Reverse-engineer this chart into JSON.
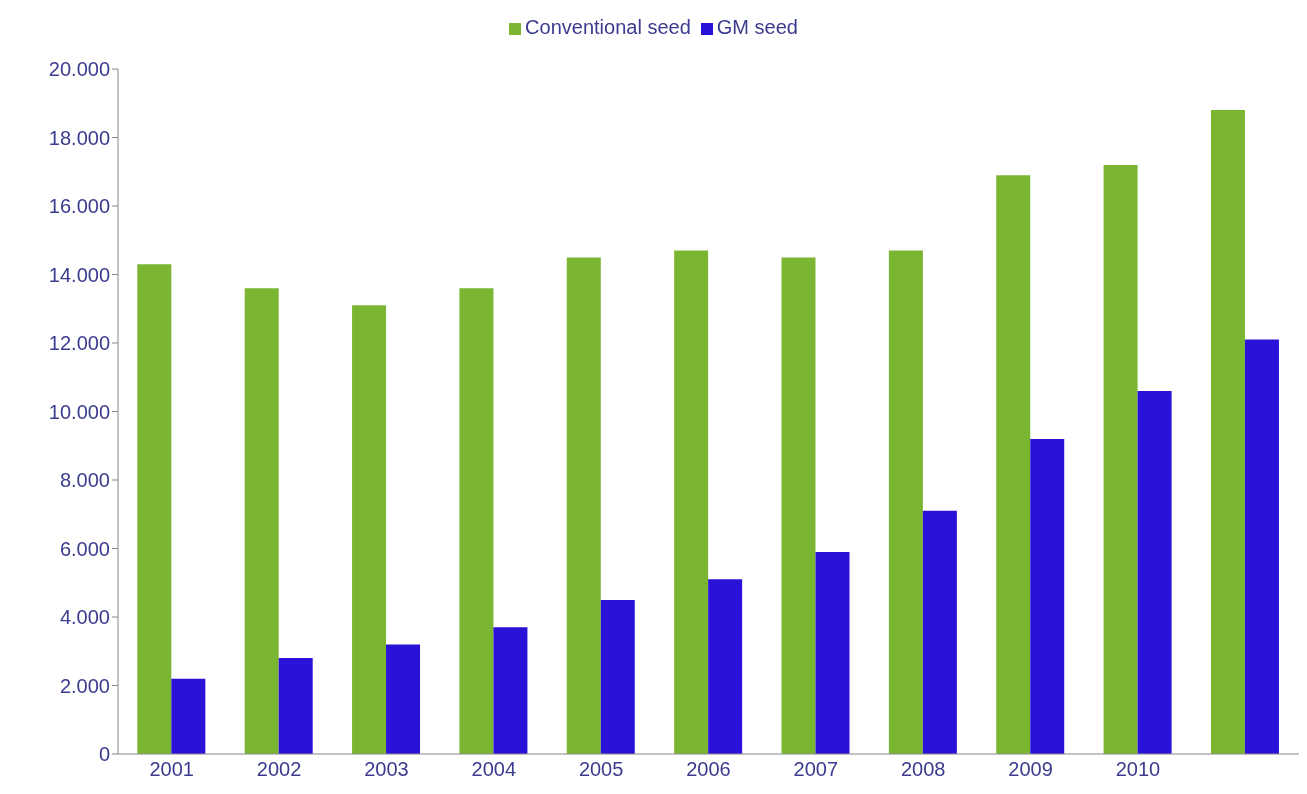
{
  "chart_data": {
    "type": "bar",
    "categories": [
      "2001",
      "2002",
      "2003",
      "2004",
      "2005",
      "2006",
      "2007",
      "2008",
      "2009",
      "2010",
      null
    ],
    "series": [
      {
        "name": "Conventional seed",
        "color": "#7ab632",
        "values": [
          14300,
          13600,
          13100,
          13600,
          14500,
          14700,
          14500,
          14700,
          16900,
          17200,
          18800
        ]
      },
      {
        "name": "GM seed",
        "color": "#2a12d8",
        "values": [
          2200,
          2800,
          3200,
          3700,
          4500,
          5100,
          5900,
          7100,
          9200,
          10600,
          12100
        ]
      }
    ],
    "ylim": [
      0,
      20000
    ],
    "yticks": [
      {
        "value": 0,
        "label": "0"
      },
      {
        "value": 2000,
        "label": "2.000"
      },
      {
        "value": 4000,
        "label": "4.000"
      },
      {
        "value": 6000,
        "label": "6.000"
      },
      {
        "value": 8000,
        "label": "8.000"
      },
      {
        "value": 10000,
        "label": "10.000"
      },
      {
        "value": 12000,
        "label": "12.000"
      },
      {
        "value": 14000,
        "label": "14.000"
      },
      {
        "value": 16000,
        "label": "16.000"
      },
      {
        "value": 18000,
        "label": "18.000"
      },
      {
        "value": 20000,
        "label": "20.000"
      }
    ],
    "legend": "top"
  }
}
